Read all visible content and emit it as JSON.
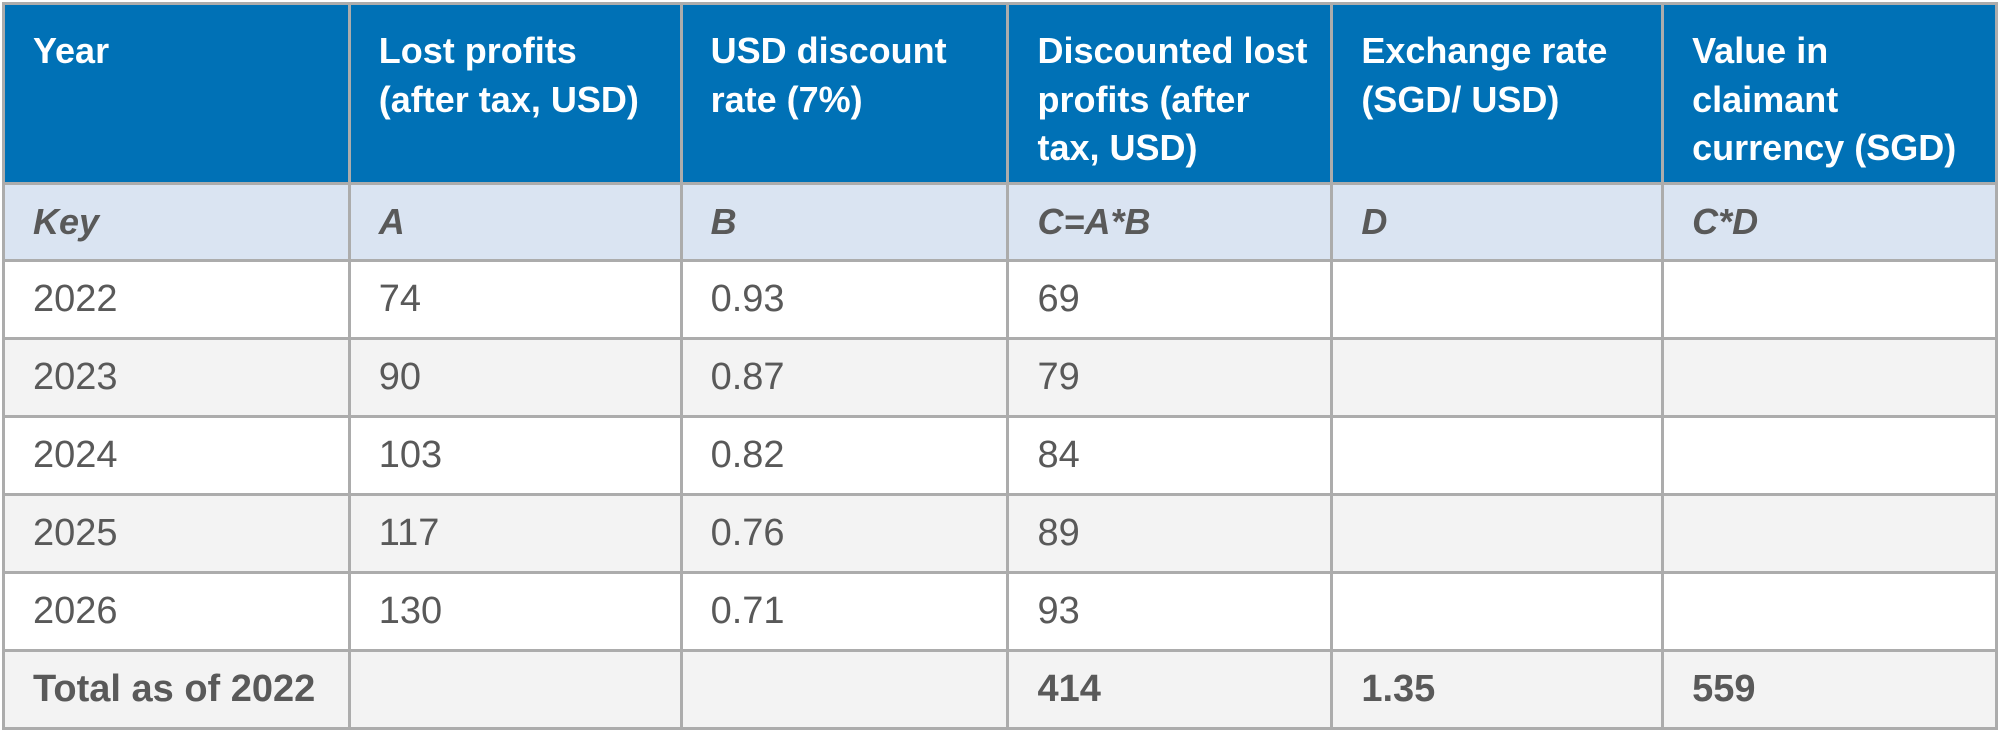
{
  "colors": {
    "header_bg": "#0071B6",
    "header_text": "#FFFFFF",
    "key_row_bg": "#DAE4F2",
    "row_bg": "#FFFFFF",
    "row_alt_bg": "#F3F3F3",
    "border": "#ACACAC",
    "body_text": "#595959"
  },
  "table": {
    "headers": [
      "Year",
      "Lost profits (after tax, USD)",
      "USD discount rate (7%)",
      "Discounted lost profits (after tax, USD)",
      "Exchange rate (SGD/ USD)",
      "Value in claimant currency (SGD)"
    ],
    "key_row": [
      "Key",
      "A",
      "B",
      "C=A*B",
      "D",
      "C*D"
    ],
    "rows": [
      [
        "2022",
        "74",
        "0.93",
        "69",
        "",
        ""
      ],
      [
        "2023",
        "90",
        "0.87",
        "79",
        "",
        ""
      ],
      [
        "2024",
        "103",
        "0.82",
        "84",
        "",
        ""
      ],
      [
        "2025",
        "117",
        "0.76",
        "89",
        "",
        ""
      ],
      [
        "2026",
        "130",
        "0.71",
        "93",
        "",
        ""
      ]
    ],
    "total_row": [
      "Total as of 2022",
      "",
      "",
      "414",
      "1.35",
      "559"
    ]
  }
}
